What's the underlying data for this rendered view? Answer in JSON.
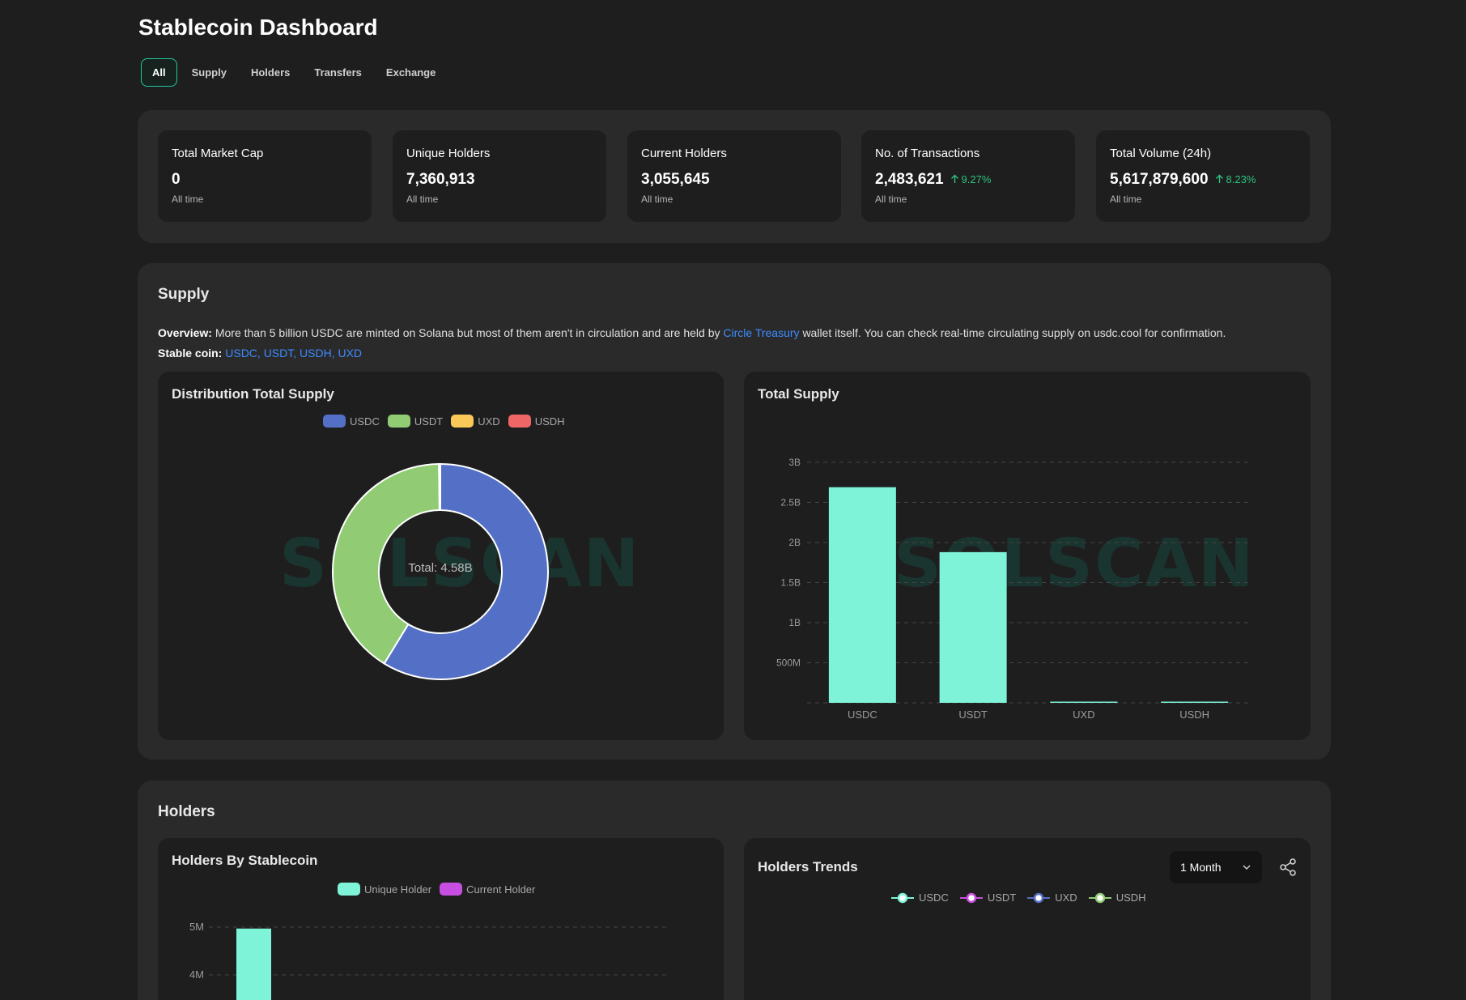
{
  "page": {
    "title": "Stablecoin Dashboard"
  },
  "tabs": [
    {
      "label": "All",
      "active": true
    },
    {
      "label": "Supply"
    },
    {
      "label": "Holders"
    },
    {
      "label": "Transfers"
    },
    {
      "label": "Exchange"
    }
  ],
  "stats": [
    {
      "title": "Total Market Cap",
      "value": "0",
      "sub": "All time",
      "delta": ""
    },
    {
      "title": "Unique Holders",
      "value": "7,360,913",
      "sub": "All time",
      "delta": ""
    },
    {
      "title": "Current Holders",
      "value": "3,055,645",
      "sub": "All time",
      "delta": ""
    },
    {
      "title": "No. of Transactions",
      "value": "2,483,621",
      "sub": "All time",
      "delta": "9.27%"
    },
    {
      "title": "Total Volume (24h)",
      "value": "5,617,879,600",
      "sub": "All time",
      "delta": "8.23%"
    }
  ],
  "supply": {
    "title": "Supply",
    "overview_label": "Overview:",
    "overview_text_1": "More than 5 billion USDC are minted on Solana but most of them aren't in circulation and are held by",
    "overview_link": "Circle Treasury",
    "overview_text_2": "wallet itself. You can check real-time circulating supply on usdc.cool for confirmation.",
    "stablecoin_label": "Stable coin:",
    "stablecoin_links": "USDC, USDT, USDH, UXD",
    "watermark": "SOLSCAN"
  },
  "colors": {
    "accent": "#23c9a0",
    "bar": "#7ef3d8",
    "usdc": "#5470c6",
    "usdt": "#91cc75",
    "uxd": "#fac858",
    "usdh": "#ee6666",
    "unique_holder": "#7ef3d8",
    "current_holder": "#c64ee0",
    "positive": "#2ec27e",
    "link": "#3d8bff"
  },
  "chart_data": [
    {
      "type": "pie",
      "title": "Distribution Total Supply",
      "center_label": "Total: 4.58B",
      "categories": [
        "USDC",
        "USDT",
        "UXD",
        "USDH"
      ],
      "values": [
        2.69,
        1.88,
        0.006,
        0.004
      ]
    },
    {
      "type": "bar",
      "title": "Total Supply",
      "categories": [
        "USDC",
        "USDT",
        "UXD",
        "USDH"
      ],
      "values": [
        2.69,
        1.88,
        0.006,
        0.004
      ],
      "ylim": [
        0,
        3
      ],
      "yticks": [
        "500M",
        "1B",
        "1.5B",
        "2B",
        "2.5B",
        "3B"
      ],
      "grid": true
    },
    {
      "type": "bar",
      "title": "Holders By Stablecoin",
      "series": [
        {
          "name": "Unique Holder",
          "values": [
            4.97
          ]
        },
        {
          "name": "Current Holder",
          "values": []
        }
      ],
      "yticks": [
        "4M",
        "5M"
      ]
    },
    {
      "type": "line",
      "title": "Holders Trends",
      "series": [
        {
          "name": "USDC"
        },
        {
          "name": "USDT"
        },
        {
          "name": "UXD"
        },
        {
          "name": "USDH"
        }
      ]
    }
  ],
  "holders": {
    "title": "Holders",
    "trend_range": "1 Month"
  }
}
